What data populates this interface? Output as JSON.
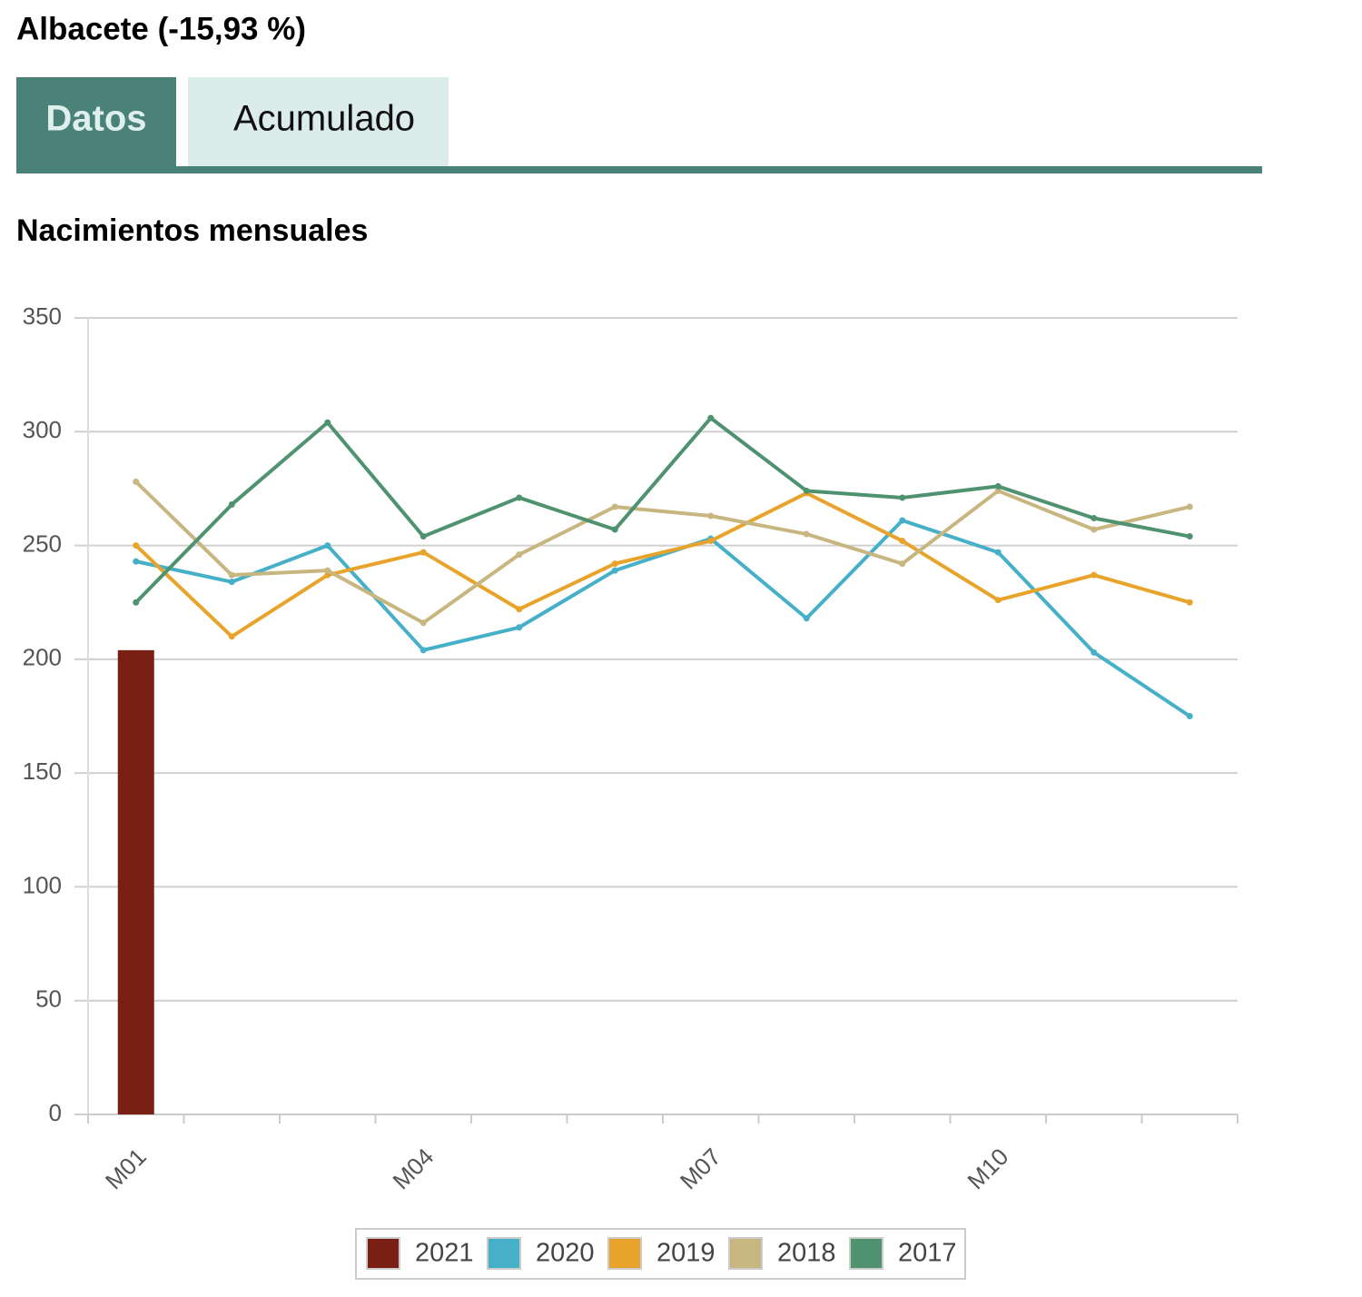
{
  "header": {
    "title": "Albacete (-15,93 %)"
  },
  "tabs": [
    "Datos",
    "Acumulado"
  ],
  "chart_data": {
    "type": "line",
    "title": "Nacimientos mensuales",
    "categories": [
      "M01",
      null,
      null,
      "M04",
      null,
      null,
      "M07",
      null,
      null,
      "M10",
      null,
      null
    ],
    "ylim": [
      0,
      350
    ],
    "yticks": [
      0,
      50,
      100,
      150,
      200,
      250,
      300,
      350
    ],
    "grid": true,
    "legend": "bottom",
    "series": [
      {
        "name": "2021",
        "type": "bar",
        "color": "#7a1f14",
        "values": [
          204,
          null,
          null,
          null,
          null,
          null,
          null,
          null,
          null,
          null,
          null,
          null
        ]
      },
      {
        "name": "2020",
        "type": "line",
        "color": "#45b0c8",
        "values": [
          243,
          234,
          250,
          204,
          214,
          239,
          253,
          218,
          261,
          247,
          203,
          175
        ]
      },
      {
        "name": "2019",
        "type": "line",
        "color": "#e8a42a",
        "values": [
          250,
          210,
          237,
          247,
          222,
          242,
          252,
          273,
          252,
          226,
          237,
          225
        ]
      },
      {
        "name": "2018",
        "type": "line",
        "color": "#c8b680",
        "values": [
          278,
          237,
          239,
          216,
          246,
          267,
          263,
          255,
          242,
          274,
          257,
          267
        ]
      },
      {
        "name": "2017",
        "type": "line",
        "color": "#4e9270",
        "values": [
          225,
          268,
          304,
          254,
          271,
          257,
          306,
          274,
          271,
          276,
          262,
          254
        ]
      }
    ]
  }
}
